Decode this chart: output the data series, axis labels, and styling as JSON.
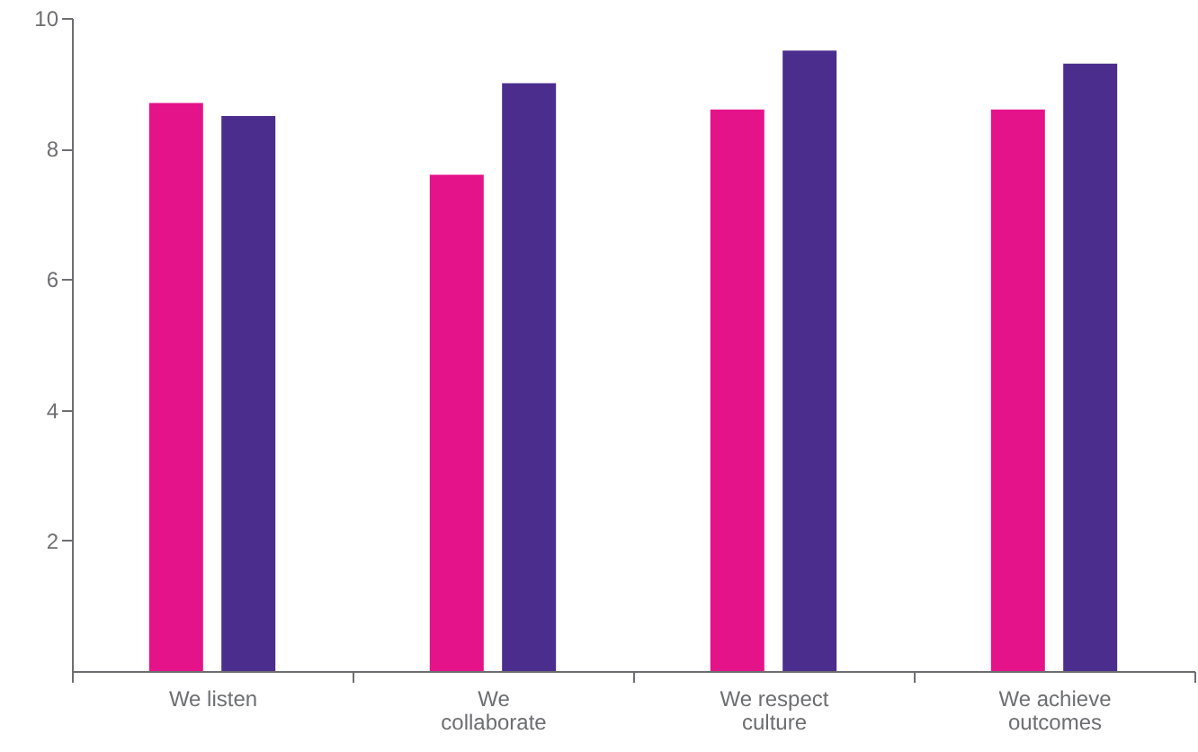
{
  "chart_data": {
    "type": "bar",
    "categories": [
      "We listen",
      "We collaborate",
      "We respect culture",
      "We achieve outcomes"
    ],
    "series": [
      {
        "color": "#e5138a",
        "values": [
          8.7,
          7.6,
          8.6,
          8.6
        ]
      },
      {
        "color": "#4b2d8e",
        "values": [
          8.5,
          9.0,
          9.5,
          9.3
        ]
      }
    ],
    "ylim": [
      0,
      10
    ],
    "yticks": [
      2,
      4,
      6,
      8,
      10
    ],
    "grid": false
  }
}
